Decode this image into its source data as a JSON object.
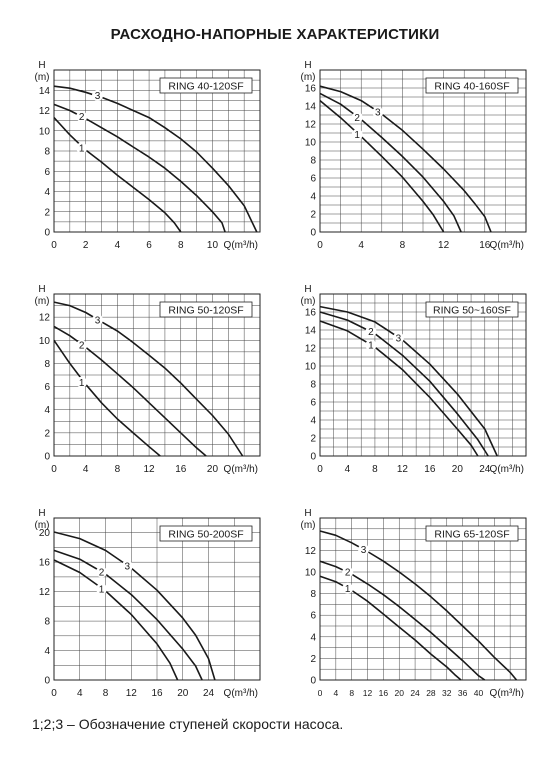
{
  "title": "РАСХОДНО-НАПОРНЫЕ ХАРАКТЕРИСТИКИ",
  "footnote": "1;2;3 – Обозначение ступеней скорости насоса.",
  "chart_data": [
    {
      "type": "line",
      "title": "RING 40-120SF",
      "ylabel": "H\n(m)",
      "xlabel": "Q(m³/h)",
      "xlim": [
        0,
        13
      ],
      "ylim": [
        0,
        16
      ],
      "xticks": [
        0,
        2,
        4,
        6,
        8,
        10
      ],
      "yticks": [
        0,
        2,
        4,
        6,
        8,
        10,
        12,
        14
      ],
      "series": [
        {
          "name": "1",
          "x": [
            0,
            1,
            2,
            3,
            4,
            5,
            6,
            7,
            7.6,
            8
          ],
          "y": [
            11.3,
            9.6,
            8.1,
            6.9,
            5.6,
            4.4,
            3.2,
            1.9,
            0.9,
            0
          ]
        },
        {
          "name": "2",
          "x": [
            0,
            1,
            2,
            3,
            4,
            5,
            6,
            7,
            8,
            9,
            10,
            10.6,
            10.8
          ],
          "y": [
            12.6,
            12.0,
            11.2,
            10.3,
            9.4,
            8.4,
            7.4,
            6.3,
            5.0,
            3.6,
            2.0,
            0.9,
            0
          ]
        },
        {
          "name": "3",
          "x": [
            0,
            1,
            2,
            3,
            4,
            5,
            6,
            7,
            8,
            9,
            10,
            11,
            12,
            12.8
          ],
          "y": [
            14.4,
            14.2,
            13.8,
            13.3,
            12.7,
            12.0,
            11.3,
            10.3,
            9.2,
            7.9,
            6.3,
            4.6,
            2.6,
            0
          ]
        }
      ]
    },
    {
      "type": "line",
      "title": "RING 40-160SF",
      "ylabel": "H\n(m)",
      "xlabel": "Q(m³/h)",
      "xlim": [
        0,
        20
      ],
      "ylim": [
        0,
        18
      ],
      "xticks": [
        0,
        4,
        8,
        12,
        16
      ],
      "yticks": [
        0,
        2,
        4,
        6,
        8,
        10,
        12,
        14,
        16
      ],
      "series": [
        {
          "name": "1",
          "x": [
            0,
            2,
            4,
            6,
            8,
            10,
            11,
            12
          ],
          "y": [
            14.6,
            12.7,
            10.6,
            8.4,
            6.1,
            3.4,
            1.9,
            0
          ]
        },
        {
          "name": "2",
          "x": [
            0,
            2,
            4,
            6,
            8,
            10,
            12,
            13,
            13.7
          ],
          "y": [
            15.4,
            14.2,
            12.5,
            10.5,
            8.4,
            6.1,
            3.4,
            1.8,
            0
          ]
        },
        {
          "name": "3",
          "x": [
            0,
            2,
            4,
            6,
            8,
            10,
            12,
            14,
            15,
            16,
            16.6
          ],
          "y": [
            16.2,
            15.6,
            14.6,
            13.1,
            11.3,
            9.2,
            7.0,
            4.6,
            3.2,
            1.7,
            0
          ]
        }
      ]
    },
    {
      "type": "line",
      "title": "RING 50-120SF",
      "ylabel": "H\n(m)",
      "xlabel": "Q(m³/h)",
      "xlim": [
        0,
        26
      ],
      "ylim": [
        0,
        14
      ],
      "xticks": [
        0,
        4,
        8,
        12,
        16,
        20
      ],
      "yticks": [
        0,
        2,
        4,
        6,
        8,
        10,
        12
      ],
      "series": [
        {
          "name": "1",
          "x": [
            0,
            2,
            4,
            6,
            8,
            10,
            12,
            13.4
          ],
          "y": [
            10.0,
            8.0,
            6.2,
            4.6,
            3.2,
            2.0,
            0.8,
            0
          ]
        },
        {
          "name": "2",
          "x": [
            0,
            2,
            4,
            6,
            8,
            10,
            12,
            14,
            16,
            18,
            19.2
          ],
          "y": [
            11.2,
            10.4,
            9.4,
            8.3,
            7.1,
            5.9,
            4.6,
            3.3,
            2.0,
            0.7,
            0
          ]
        },
        {
          "name": "3",
          "x": [
            0,
            2,
            4,
            6,
            8,
            10,
            12,
            14,
            16,
            18,
            20,
            22,
            23.8
          ],
          "y": [
            13.3,
            13.0,
            12.4,
            11.6,
            10.8,
            9.8,
            8.7,
            7.6,
            6.3,
            4.9,
            3.5,
            1.9,
            0
          ]
        }
      ]
    },
    {
      "type": "line",
      "title": "RING 50~160SF",
      "ylabel": "H\n(m)",
      "xlabel": "Q(m³/h)",
      "xlim": [
        0,
        30
      ],
      "ylim": [
        0,
        18
      ],
      "xticks": [
        0,
        4,
        8,
        12,
        16,
        20,
        24
      ],
      "yticks": [
        0,
        2,
        4,
        6,
        8,
        10,
        12,
        14,
        16
      ],
      "series": [
        {
          "name": "1",
          "x": [
            0,
            4,
            8,
            12,
            16,
            20,
            22,
            23
          ],
          "y": [
            15.0,
            13.9,
            12.1,
            9.6,
            6.5,
            3.0,
            1.2,
            0
          ]
        },
        {
          "name": "2",
          "x": [
            0,
            4,
            8,
            12,
            16,
            20,
            23,
            24.5
          ],
          "y": [
            16.0,
            15.1,
            13.6,
            11.2,
            8.3,
            4.7,
            1.8,
            0
          ]
        },
        {
          "name": "3",
          "x": [
            0,
            4,
            8,
            12,
            16,
            20,
            24,
            25.8
          ],
          "y": [
            16.6,
            16.0,
            14.9,
            12.9,
            10.2,
            6.9,
            3.0,
            0
          ]
        }
      ]
    },
    {
      "type": "line",
      "title": "RING 50-200SF",
      "ylabel": "H\n(m)",
      "xlabel": "Q(m³/h)",
      "xlim": [
        0,
        32
      ],
      "ylim": [
        0,
        22
      ],
      "xticks": [
        0,
        4,
        8,
        12,
        16,
        20,
        24
      ],
      "yticks": [
        0,
        4,
        8,
        12,
        16,
        20
      ],
      "series": [
        {
          "name": "1",
          "x": [
            0,
            4,
            8,
            12,
            16,
            18,
            19.2
          ],
          "y": [
            16.3,
            14.6,
            12.1,
            8.9,
            4.9,
            2.3,
            0
          ]
        },
        {
          "name": "2",
          "x": [
            0,
            4,
            8,
            12,
            16,
            20,
            22,
            23
          ],
          "y": [
            17.6,
            16.4,
            14.4,
            11.6,
            8.2,
            4.2,
            1.9,
            0
          ]
        },
        {
          "name": "3",
          "x": [
            0,
            4,
            8,
            12,
            16,
            20,
            22,
            24,
            25
          ],
          "y": [
            20.1,
            19.2,
            17.6,
            15.2,
            12.2,
            8.4,
            6.1,
            2.9,
            0
          ]
        }
      ]
    },
    {
      "type": "line",
      "title": "RING 65-120SF",
      "ylabel": "H\n(m)",
      "xlabel": "Q(m³/h)",
      "xlim": [
        0,
        52
      ],
      "ylim": [
        0,
        15
      ],
      "xticks": [
        0,
        4,
        8,
        12,
        16,
        20,
        24,
        28,
        32,
        36,
        40
      ],
      "yticks": [
        0,
        2,
        4,
        6,
        8,
        10,
        12
      ],
      "series": [
        {
          "name": "1",
          "x": [
            0,
            4,
            8,
            12,
            16,
            20,
            24,
            28,
            32,
            34,
            35.6
          ],
          "y": [
            9.6,
            9.1,
            8.3,
            7.3,
            6.1,
            4.9,
            3.7,
            2.4,
            1.2,
            0.5,
            0
          ]
        },
        {
          "name": "2",
          "x": [
            0,
            4,
            8,
            12,
            16,
            20,
            24,
            28,
            32,
            36,
            40,
            41.6
          ],
          "y": [
            11.0,
            10.5,
            9.8,
            8.9,
            7.9,
            6.8,
            5.6,
            4.4,
            3.1,
            1.8,
            0.4,
            0
          ]
        },
        {
          "name": "3",
          "x": [
            0,
            4,
            8,
            12,
            16,
            20,
            24,
            28,
            32,
            36,
            40,
            44,
            48,
            49.6
          ],
          "y": [
            13.8,
            13.4,
            12.7,
            11.9,
            11.0,
            10.0,
            8.9,
            7.7,
            6.4,
            5.0,
            3.6,
            2.1,
            0.7,
            0
          ]
        }
      ]
    }
  ]
}
